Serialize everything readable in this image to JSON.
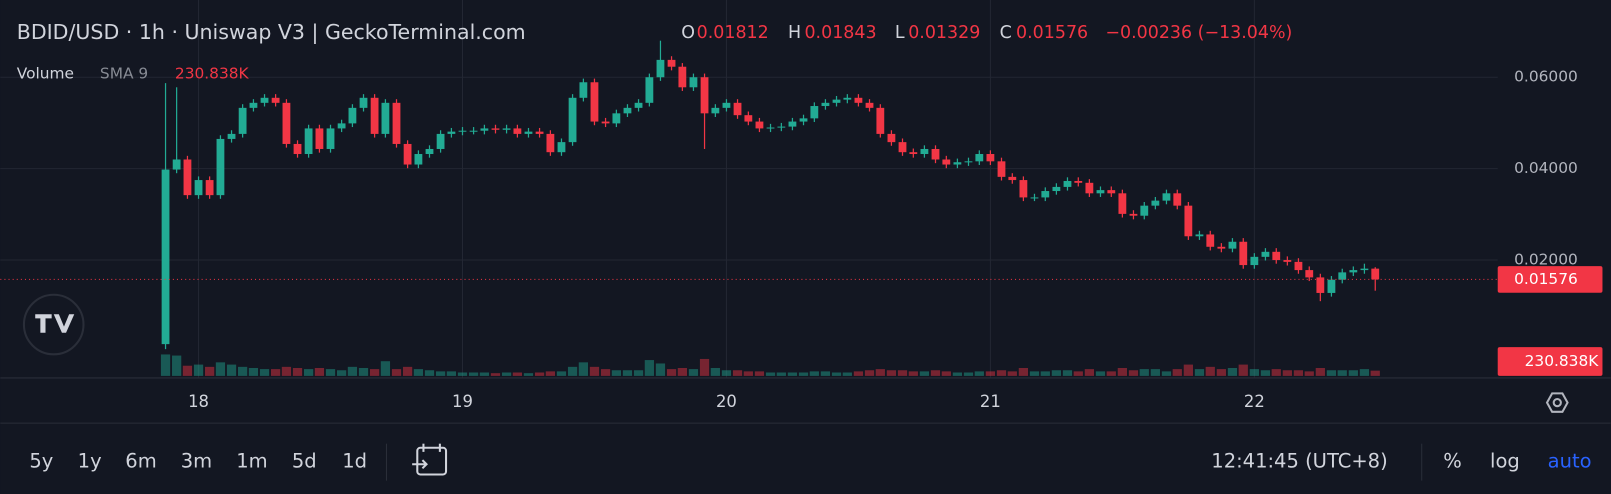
{
  "chart_data": {
    "type": "candlestick",
    "title": "BDID/USD · 1h · Uniswap V3 | GeckoTerminal.com",
    "ohlc_labels": [
      "O",
      "H",
      "L",
      "C"
    ],
    "change_label": "−0.00236 (−13.04%)",
    "x": [
      17.875,
      17.917,
      17.958,
      18,
      18.042,
      18.083,
      18.125,
      18.167,
      18.208,
      18.25,
      18.292,
      18.333,
      18.375,
      18.417,
      18.458,
      18.5,
      18.542,
      18.583,
      18.625,
      18.667,
      18.708,
      18.75,
      18.792,
      18.833,
      18.875,
      18.917,
      18.958,
      19,
      19.042,
      19.083,
      19.125,
      19.167,
      19.208,
      19.25,
      19.292,
      19.333,
      19.375,
      19.417,
      19.458,
      19.5,
      19.542,
      19.583,
      19.625,
      19.667,
      19.708,
      19.75,
      19.792,
      19.833,
      19.875,
      19.917,
      19.958,
      20,
      20.042,
      20.083,
      20.125,
      20.167,
      20.208,
      20.25,
      20.292,
      20.333,
      20.375,
      20.417,
      20.458,
      20.5,
      20.542,
      20.583,
      20.625,
      20.667,
      20.708,
      20.75,
      20.792,
      20.833,
      20.875,
      20.917,
      20.958,
      21,
      21.042,
      21.083,
      21.125,
      21.167,
      21.208,
      21.25,
      21.292,
      21.333,
      21.375,
      21.417,
      21.458,
      21.5,
      21.542,
      21.583,
      21.625,
      21.667,
      21.708,
      21.75,
      21.792,
      21.833,
      21.875,
      21.917,
      21.958,
      22,
      22.042,
      22.083,
      22.125,
      22.167,
      22.208,
      22.25,
      22.292,
      22.333,
      22.375,
      22.417,
      22.458
    ],
    "open": [
      0.0016,
      0.0398,
      0.042,
      0.0342,
      0.0375,
      0.0342,
      0.0465,
      0.0476,
      0.0533,
      0.0544,
      0.0555,
      0.0544,
      0.0454,
      0.0432,
      0.0488,
      0.0443,
      0.0488,
      0.0499,
      0.0533,
      0.0555,
      0.0476,
      0.0544,
      0.0454,
      0.0409,
      0.0432,
      0.0443,
      0.0476,
      0.0481,
      0.0483,
      0.0483,
      0.0488,
      0.0485,
      0.0488,
      0.0476,
      0.0481,
      0.0476,
      0.0436,
      0.0458,
      0.0555,
      0.0589,
      0.0503,
      0.0499,
      0.0521,
      0.0533,
      0.0544,
      0.06,
      0.0638,
      0.0623,
      0.0578,
      0.06,
      0.0521,
      0.0533,
      0.0544,
      0.0517,
      0.0503,
      0.0488,
      0.049,
      0.0492,
      0.0503,
      0.051,
      0.0537,
      0.0544,
      0.0551,
      0.0555,
      0.0544,
      0.0533,
      0.0476,
      0.0458,
      0.0436,
      0.0432,
      0.0443,
      0.042,
      0.0409,
      0.0414,
      0.0416,
      0.0432,
      0.0416,
      0.0382,
      0.0375,
      0.0337,
      0.0337,
      0.0351,
      0.036,
      0.0373,
      0.0369,
      0.0346,
      0.0353,
      0.0346,
      0.0301,
      0.0297,
      0.0319,
      0.033,
      0.0346,
      0.0319,
      0.0252,
      0.0256,
      0.0229,
      0.0225,
      0.024,
      0.0189,
      0.0207,
      0.0218,
      0.02,
      0.0196,
      0.0178,
      0.0162,
      0.0128,
      0.0157,
      0.0173,
      0.0178,
      0.01812
    ],
    "high": [
      0.0587,
      0.0578,
      0.0428,
      0.0383,
      0.0383,
      0.0473,
      0.0484,
      0.0541,
      0.0552,
      0.0563,
      0.0563,
      0.0552,
      0.0462,
      0.0496,
      0.0496,
      0.0496,
      0.0507,
      0.0541,
      0.0563,
      0.0563,
      0.0552,
      0.0552,
      0.0462,
      0.044,
      0.0451,
      0.0484,
      0.0489,
      0.0491,
      0.0491,
      0.0496,
      0.0496,
      0.0496,
      0.0496,
      0.0489,
      0.0489,
      0.0484,
      0.0466,
      0.0563,
      0.0597,
      0.0597,
      0.0511,
      0.0529,
      0.0541,
      0.0552,
      0.0608,
      0.068,
      0.0646,
      0.0631,
      0.0608,
      0.0608,
      0.0541,
      0.0552,
      0.0552,
      0.0525,
      0.0511,
      0.0498,
      0.05,
      0.0511,
      0.0518,
      0.0545,
      0.0552,
      0.0559,
      0.0563,
      0.0563,
      0.0552,
      0.0541,
      0.0484,
      0.0466,
      0.0444,
      0.0451,
      0.0451,
      0.0428,
      0.0422,
      0.0424,
      0.044,
      0.044,
      0.0424,
      0.039,
      0.0383,
      0.0345,
      0.0359,
      0.0368,
      0.0381,
      0.0381,
      0.0377,
      0.0361,
      0.0361,
      0.0354,
      0.0309,
      0.0327,
      0.0338,
      0.0354,
      0.0354,
      0.0327,
      0.0264,
      0.0264,
      0.0237,
      0.0248,
      0.0248,
      0.0215,
      0.0226,
      0.0226,
      0.0208,
      0.0204,
      0.0186,
      0.017,
      0.0165,
      0.0181,
      0.0186,
      0.0192,
      0.01843
    ],
    "low": [
      0.0005,
      0.039,
      0.0334,
      0.0334,
      0.0334,
      0.0334,
      0.0457,
      0.0468,
      0.0525,
      0.0536,
      0.0536,
      0.0446,
      0.0424,
      0.0424,
      0.0435,
      0.0435,
      0.048,
      0.0491,
      0.0525,
      0.0468,
      0.0468,
      0.0446,
      0.0401,
      0.0401,
      0.0424,
      0.0435,
      0.0468,
      0.0473,
      0.0475,
      0.0475,
      0.0477,
      0.0477,
      0.0468,
      0.0468,
      0.0468,
      0.0428,
      0.0428,
      0.045,
      0.0547,
      0.0495,
      0.0491,
      0.0491,
      0.0513,
      0.0525,
      0.0536,
      0.0592,
      0.0615,
      0.057,
      0.057,
      0.0443,
      0.0513,
      0.0525,
      0.0509,
      0.0495,
      0.048,
      0.048,
      0.0482,
      0.0484,
      0.0495,
      0.0502,
      0.0529,
      0.0536,
      0.0543,
      0.0536,
      0.0525,
      0.0468,
      0.045,
      0.0428,
      0.0424,
      0.0424,
      0.0412,
      0.0401,
      0.0401,
      0.0406,
      0.0408,
      0.0408,
      0.0374,
      0.0367,
      0.0329,
      0.0329,
      0.0329,
      0.0343,
      0.0352,
      0.0361,
      0.0338,
      0.0338,
      0.0338,
      0.0293,
      0.0289,
      0.0289,
      0.0311,
      0.0322,
      0.0311,
      0.0244,
      0.0244,
      0.0221,
      0.0217,
      0.0217,
      0.0181,
      0.0181,
      0.0199,
      0.0192,
      0.0188,
      0.017,
      0.0154,
      0.011,
      0.012,
      0.0149,
      0.0165,
      0.017,
      0.01329
    ],
    "close": [
      0.0398,
      0.042,
      0.0342,
      0.0375,
      0.0342,
      0.0465,
      0.0476,
      0.0533,
      0.0544,
      0.0555,
      0.0544,
      0.0454,
      0.0432,
      0.0488,
      0.0443,
      0.0488,
      0.0499,
      0.0533,
      0.0555,
      0.0476,
      0.0544,
      0.0454,
      0.0409,
      0.0432,
      0.0443,
      0.0476,
      0.0481,
      0.0483,
      0.0483,
      0.0488,
      0.0485,
      0.0488,
      0.0476,
      0.0481,
      0.0476,
      0.0436,
      0.0458,
      0.0555,
      0.0589,
      0.0503,
      0.0499,
      0.0521,
      0.0533,
      0.0544,
      0.06,
      0.0638,
      0.0623,
      0.0578,
      0.06,
      0.0521,
      0.0533,
      0.0544,
      0.0517,
      0.0503,
      0.0488,
      0.049,
      0.0492,
      0.0503,
      0.051,
      0.0537,
      0.0544,
      0.0551,
      0.0555,
      0.0544,
      0.0533,
      0.0476,
      0.0458,
      0.0436,
      0.0432,
      0.0443,
      0.042,
      0.0409,
      0.0414,
      0.0416,
      0.0432,
      0.0416,
      0.0382,
      0.0375,
      0.0337,
      0.0337,
      0.0351,
      0.036,
      0.0373,
      0.0369,
      0.0346,
      0.0353,
      0.0346,
      0.0301,
      0.0297,
      0.0319,
      0.033,
      0.0346,
      0.0319,
      0.0252,
      0.0256,
      0.0229,
      0.0225,
      0.024,
      0.0189,
      0.0207,
      0.0218,
      0.02,
      0.0196,
      0.0178,
      0.0162,
      0.0128,
      0.0157,
      0.0173,
      0.0178,
      0.01812,
      0.01576
    ],
    "up_color": "#22ab94",
    "down_color": "#f23645",
    "xlim": [
      17.249,
      22.922
    ],
    "xticks": [
      18,
      19,
      20,
      21,
      22
    ],
    "ylim": [
      -0.0058,
      0.0769
    ],
    "yticks": [
      {
        "value": 0.02,
        "label": "0.02000"
      },
      {
        "value": 0.04,
        "label": "0.04000"
      },
      {
        "value": 0.06,
        "label": "0.06000"
      }
    ],
    "grid": true,
    "volume": {
      "name": "Volume",
      "indicator": "SMA 9",
      "ylim": [
        0,
        3000000
      ],
      "last_label": "230.838K",
      "values": [
        950000,
        900000,
        450000,
        500000,
        400000,
        600000,
        500000,
        400000,
        350000,
        300000,
        300000,
        400000,
        350000,
        300000,
        350000,
        300000,
        250000,
        400000,
        350000,
        300000,
        650000,
        300000,
        400000,
        300000,
        250000,
        200000,
        200000,
        150000,
        150000,
        150000,
        120000,
        150000,
        150000,
        120000,
        150000,
        200000,
        200000,
        400000,
        600000,
        400000,
        300000,
        250000,
        250000,
        250000,
        700000,
        550000,
        300000,
        350000,
        300000,
        750000,
        350000,
        250000,
        250000,
        200000,
        200000,
        150000,
        150000,
        150000,
        150000,
        200000,
        200000,
        150000,
        150000,
        200000,
        250000,
        300000,
        250000,
        250000,
        200000,
        200000,
        250000,
        200000,
        150000,
        150000,
        200000,
        200000,
        250000,
        200000,
        350000,
        200000,
        200000,
        250000,
        250000,
        200000,
        300000,
        200000,
        200000,
        350000,
        250000,
        300000,
        300000,
        200000,
        300000,
        500000,
        300000,
        400000,
        300000,
        350000,
        500000,
        300000,
        250000,
        300000,
        250000,
        250000,
        200000,
        350000,
        250000,
        250000,
        250000,
        300000,
        230838
      ]
    }
  },
  "toolbar": {
    "ranges": [
      "5y",
      "1y",
      "6m",
      "3m",
      "1m",
      "5d",
      "1d"
    ],
    "clock": "12:41:45 (UTC+8)",
    "options": [
      "%",
      "log",
      "auto"
    ]
  }
}
